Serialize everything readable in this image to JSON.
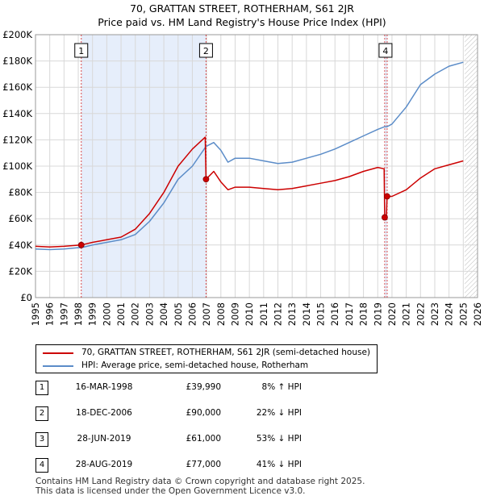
{
  "title_line1": "70, GRATTAN STREET, ROTHERHAM, S61 2JR",
  "title_line2": "Price paid vs. HM Land Registry's House Price Index (HPI)",
  "colors": {
    "price": "#cc0000",
    "hpi": "#5b8cc8",
    "shade": "#e6eefb",
    "marker_line": "#cc0000"
  },
  "chart_data": {
    "type": "line",
    "ylim": [
      0,
      200000
    ],
    "xlim": [
      1995,
      2026
    ],
    "y_ticks": [
      {
        "value": 0,
        "label": "£0"
      },
      {
        "value": 20000,
        "label": "£20K"
      },
      {
        "value": 40000,
        "label": "£40K"
      },
      {
        "value": 60000,
        "label": "£60K"
      },
      {
        "value": 80000,
        "label": "£80K"
      },
      {
        "value": 100000,
        "label": "£100K"
      },
      {
        "value": 120000,
        "label": "£120K"
      },
      {
        "value": 140000,
        "label": "£140K"
      },
      {
        "value": 160000,
        "label": "£160K"
      },
      {
        "value": 180000,
        "label": "£180K"
      },
      {
        "value": 200000,
        "label": "£200K"
      }
    ],
    "x_ticks": [
      "1995",
      "1996",
      "1997",
      "1998",
      "1999",
      "2000",
      "2001",
      "2002",
      "2003",
      "2004",
      "2005",
      "2006",
      "2007",
      "2008",
      "2009",
      "2010",
      "2011",
      "2012",
      "2013",
      "2014",
      "2015",
      "2016",
      "2017",
      "2018",
      "2019",
      "2020",
      "2021",
      "2022",
      "2023",
      "2024",
      "2025",
      "2026"
    ],
    "shaded_ranges": [
      [
        1998.21,
        2006.96
      ],
      [
        2019.49,
        2019.66
      ]
    ],
    "hatch_from": 2025.1,
    "series": [
      {
        "name": "70, GRATTAN STREET, ROTHERHAM, S61 2JR (semi-detached house)",
        "x": [
          1995,
          1996,
          1997,
          1998.2,
          1998.21,
          1999,
          2000,
          2001,
          2002,
          2003,
          2004,
          2005,
          2006,
          2006.9,
          2006.96,
          2007.5,
          2008,
          2008.5,
          2009,
          2010,
          2011,
          2012,
          2013,
          2014,
          2015,
          2016,
          2017,
          2018,
          2019,
          2019.45,
          2019.49,
          2019.6,
          2019.66,
          2020,
          2021,
          2022,
          2023,
          2024,
          2025
        ],
        "values": [
          39000,
          38500,
          39000,
          40000,
          39990,
          42000,
          44000,
          46000,
          52000,
          64000,
          80000,
          100000,
          113000,
          122000,
          90000,
          96000,
          88000,
          82000,
          84000,
          84000,
          83000,
          82000,
          83000,
          85000,
          87000,
          89000,
          92000,
          96000,
          99000,
          98000,
          61000,
          60000,
          77000,
          77000,
          82000,
          91000,
          98000,
          101000,
          104000
        ]
      },
      {
        "name": "HPI: Average price, semi-detached house, Rotherham",
        "x": [
          1995,
          1996,
          1997,
          1998,
          1998.21,
          1999,
          2000,
          2001,
          2002,
          2003,
          2004,
          2005,
          2006,
          2006.96,
          2007.5,
          2008,
          2008.5,
          2009,
          2010,
          2011,
          2012,
          2013,
          2014,
          2015,
          2016,
          2017,
          2018,
          2019,
          2019.49,
          2019.66,
          2020,
          2021,
          2022,
          2023,
          2024,
          2025
        ],
        "values": [
          37000,
          36500,
          37000,
          38000,
          38000,
          40000,
          42000,
          44000,
          48000,
          58000,
          72000,
          90000,
          100000,
          115000,
          118000,
          112000,
          103000,
          106000,
          106000,
          104000,
          102000,
          103000,
          106000,
          109000,
          113000,
          118000,
          123000,
          128000,
          130000,
          130000,
          132000,
          145000,
          162000,
          170000,
          176000,
          179000
        ]
      }
    ],
    "markers": [
      {
        "label": "1",
        "x": 1998.21,
        "value": 39990
      },
      {
        "label": "2",
        "x": 2006.96,
        "value": 90000
      },
      {
        "label": "3",
        "x": 2019.49,
        "value": 61000
      },
      {
        "label": "4",
        "x": 2019.66,
        "value": 77000
      }
    ]
  },
  "legend": [
    {
      "label": "70, GRATTAN STREET, ROTHERHAM, S61 2JR (semi-detached house)",
      "color": "#cc0000"
    },
    {
      "label": "HPI: Average price, semi-detached house, Rotherham",
      "color": "#5b8cc8"
    }
  ],
  "transactions": [
    {
      "num": "1",
      "date": "16-MAR-1998",
      "price": "£39,990",
      "hpi": "8% ↑ HPI"
    },
    {
      "num": "2",
      "date": "18-DEC-2006",
      "price": "£90,000",
      "hpi": "22% ↓ HPI"
    },
    {
      "num": "3",
      "date": "28-JUN-2019",
      "price": "£61,000",
      "hpi": "53% ↓ HPI"
    },
    {
      "num": "4",
      "date": "28-AUG-2019",
      "price": "£77,000",
      "hpi": "41% ↓ HPI"
    }
  ],
  "footer_line1": "Contains HM Land Registry data © Crown copyright and database right 2025.",
  "footer_line2": "This data is licensed under the Open Government Licence v3.0."
}
